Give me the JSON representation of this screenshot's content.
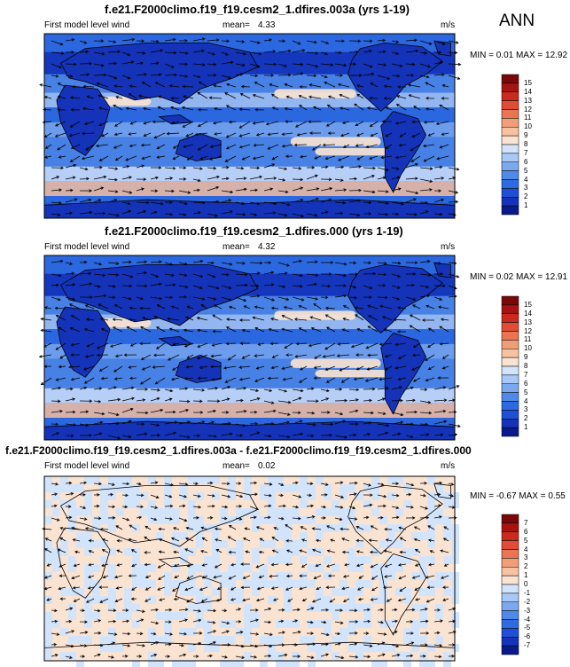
{
  "season": "ANN",
  "panels": [
    {
      "title": "f.e21.F2000climo.f19_f19.cesm2_1.dfires.003a (yrs 1-19)",
      "variable": "First model level wind",
      "mean_label": "mean=",
      "mean": "4.33",
      "units": "m/s",
      "minmax": "MIN =  0.01 MAX =  12.92",
      "colorbar_labels": [
        "15",
        "14",
        "13",
        "12",
        "11",
        "10",
        "9",
        "8",
        "7",
        "6",
        "5",
        "4",
        "3",
        "2",
        "1"
      ]
    },
    {
      "title": "f.e21.F2000climo.f19_f19.cesm2_1.dfires.000 (yrs 1-19)",
      "variable": "First model level wind",
      "mean_label": "mean=",
      "mean": "4.32",
      "units": "m/s",
      "minmax": "MIN =  0.02 MAX =  12.91",
      "colorbar_labels": [
        "15",
        "14",
        "13",
        "12",
        "11",
        "10",
        "9",
        "8",
        "7",
        "6",
        "5",
        "4",
        "3",
        "2",
        "1"
      ]
    },
    {
      "title": "f.e21.F2000climo.f19_f19.cesm2_1.dfires.003a - f.e21.F2000climo.f19_f19.cesm2_1.dfires.000",
      "variable": "First model level wind",
      "mean_label": "mean=",
      "mean": "0.02",
      "units": "m/s",
      "minmax": "MIN = -0.67 MAX =   0.55",
      "colorbar_labels": [
        "7",
        "6",
        "5",
        "4",
        "3",
        "2",
        "1",
        "0",
        "-1",
        "-2",
        "-3",
        "-4",
        "-5",
        "-6",
        "-7"
      ]
    }
  ],
  "chart_data": [
    {
      "type": "heatmap",
      "title": "f.e21.F2000climo.f19_f19.cesm2_1.dfires.003a (yrs 1-19)",
      "subtitle": "First model level wind",
      "units": "m/s",
      "mean": 4.33,
      "min": 0.01,
      "max": 12.92,
      "levels": [
        1,
        2,
        3,
        4,
        5,
        6,
        7,
        8,
        9,
        10,
        11,
        12,
        13,
        14,
        15
      ],
      "colors": [
        "#0a1a8c",
        "#1433b8",
        "#1f4fd4",
        "#2e6be0",
        "#4f8ae8",
        "#7aa9ef",
        "#a8c8f5",
        "#d2e4fb",
        "#fbe3d2",
        "#f7c2a2",
        "#f19e78",
        "#ea7553",
        "#df4e34",
        "#c92a1c",
        "#a51410",
        "#7a0808"
      ]
    },
    {
      "type": "heatmap",
      "title": "f.e21.F2000climo.f19_f19.cesm2_1.dfires.000 (yrs 1-19)",
      "subtitle": "First model level wind",
      "units": "m/s",
      "mean": 4.32,
      "min": 0.02,
      "max": 12.91,
      "levels": [
        1,
        2,
        3,
        4,
        5,
        6,
        7,
        8,
        9,
        10,
        11,
        12,
        13,
        14,
        15
      ],
      "colors": [
        "#0a1a8c",
        "#1433b8",
        "#1f4fd4",
        "#2e6be0",
        "#4f8ae8",
        "#7aa9ef",
        "#a8c8f5",
        "#d2e4fb",
        "#fbe3d2",
        "#f7c2a2",
        "#f19e78",
        "#ea7553",
        "#df4e34",
        "#c92a1c",
        "#a51410",
        "#7a0808"
      ]
    },
    {
      "type": "heatmap",
      "title": "f.e21.F2000climo.f19_f19.cesm2_1.dfires.003a - f.e21.F2000climo.f19_f19.cesm2_1.dfires.000",
      "subtitle": "First model level wind",
      "units": "m/s",
      "mean": 0.02,
      "min": -0.67,
      "max": 0.55,
      "levels": [
        -7,
        -6,
        -5,
        -4,
        -3,
        -2,
        -1,
        0,
        1,
        2,
        3,
        4,
        5,
        6,
        7
      ],
      "colors": [
        "#0a1a8c",
        "#1433b8",
        "#1f4fd4",
        "#2e6be0",
        "#4f8ae8",
        "#7aa9ef",
        "#a8c8f5",
        "#d2e4fb",
        "#fbe3d2",
        "#f7c2a2",
        "#f19e78",
        "#ea7553",
        "#df4e34",
        "#c92a1c",
        "#a51410",
        "#7a0808"
      ]
    }
  ]
}
